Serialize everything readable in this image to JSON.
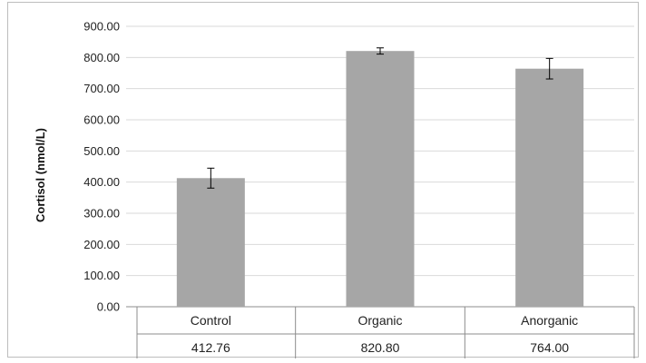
{
  "chart_data": {
    "type": "bar",
    "title": "",
    "xlabel": "",
    "ylabel": "Cortisol (nmol/L)",
    "categories": [
      "Control",
      "Organic",
      "Anorganic"
    ],
    "values": [
      412.76,
      820.8,
      764.0
    ],
    "value_labels": [
      "412.76",
      "820.80",
      "764.00"
    ],
    "error_bars": [
      32,
      10,
      33
    ],
    "ylim": [
      0,
      900
    ],
    "yticks": [
      0,
      100,
      200,
      300,
      400,
      500,
      600,
      700,
      800,
      900
    ],
    "ytick_labels": [
      "0.00",
      "100.00",
      "200.00",
      "300.00",
      "400.00",
      "500.00",
      "600.00",
      "700.00",
      "800.00",
      "900.00"
    ],
    "grid": true,
    "legend": "none",
    "data_table": true,
    "colors": {
      "bar": "#a6a6a6",
      "grid": "#d9d9d9",
      "axis": "#8c8c8c",
      "error": "#000000"
    }
  }
}
